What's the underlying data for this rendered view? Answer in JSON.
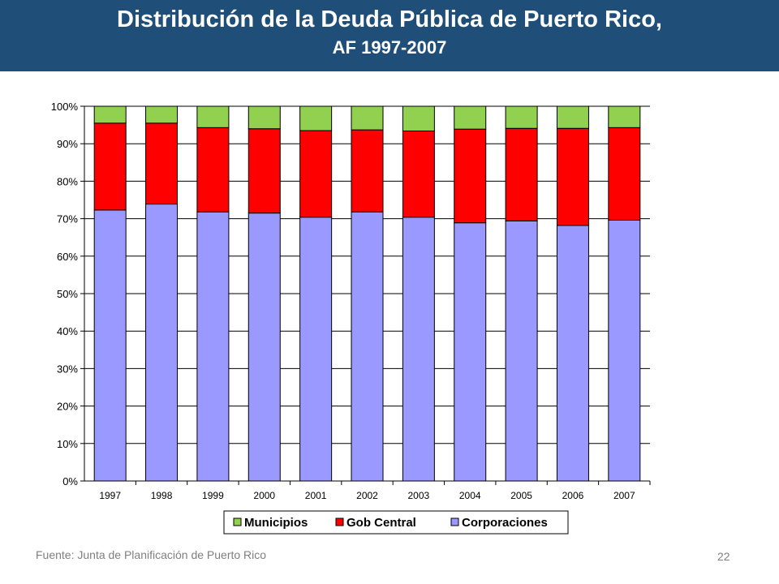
{
  "slide": {
    "title_line1": "Distribución de la Deuda Pública de Puerto Rico,",
    "title_line2": "AF 1997-2007",
    "source": "Fuente: Junta de Planificación de Puerto Rico",
    "page_number": "22",
    "header_color": "#1f4e79"
  },
  "chart_data": {
    "type": "bar",
    "stacked": true,
    "percent": true,
    "categories": [
      "1997",
      "1998",
      "1999",
      "2000",
      "2001",
      "2002",
      "2003",
      "2004",
      "2005",
      "2006",
      "2007"
    ],
    "series": [
      {
        "name": "Corporaciones",
        "color": "#9999ff",
        "values": [
          72.3,
          73.9,
          71.8,
          71.5,
          70.4,
          71.8,
          70.4,
          68.9,
          69.4,
          68.2,
          69.6
        ]
      },
      {
        "name": "Gob Central",
        "color": "#ff0000",
        "values": [
          23.2,
          21.6,
          22.5,
          22.5,
          23.1,
          21.9,
          23.0,
          25.0,
          24.7,
          25.9,
          24.7
        ]
      },
      {
        "name": "Municipios",
        "color": "#92d050",
        "values": [
          4.5,
          4.5,
          5.7,
          6.0,
          6.5,
          6.3,
          6.6,
          6.1,
          5.9,
          5.9,
          5.7
        ]
      }
    ],
    "legend_order": [
      "Municipios",
      "Gob Central",
      "Corporaciones"
    ],
    "y_ticks": [
      "0%",
      "10%",
      "20%",
      "30%",
      "40%",
      "50%",
      "60%",
      "70%",
      "80%",
      "90%",
      "100%"
    ],
    "ylim": [
      0,
      100
    ],
    "grid": true,
    "legend_position": "bottom"
  }
}
